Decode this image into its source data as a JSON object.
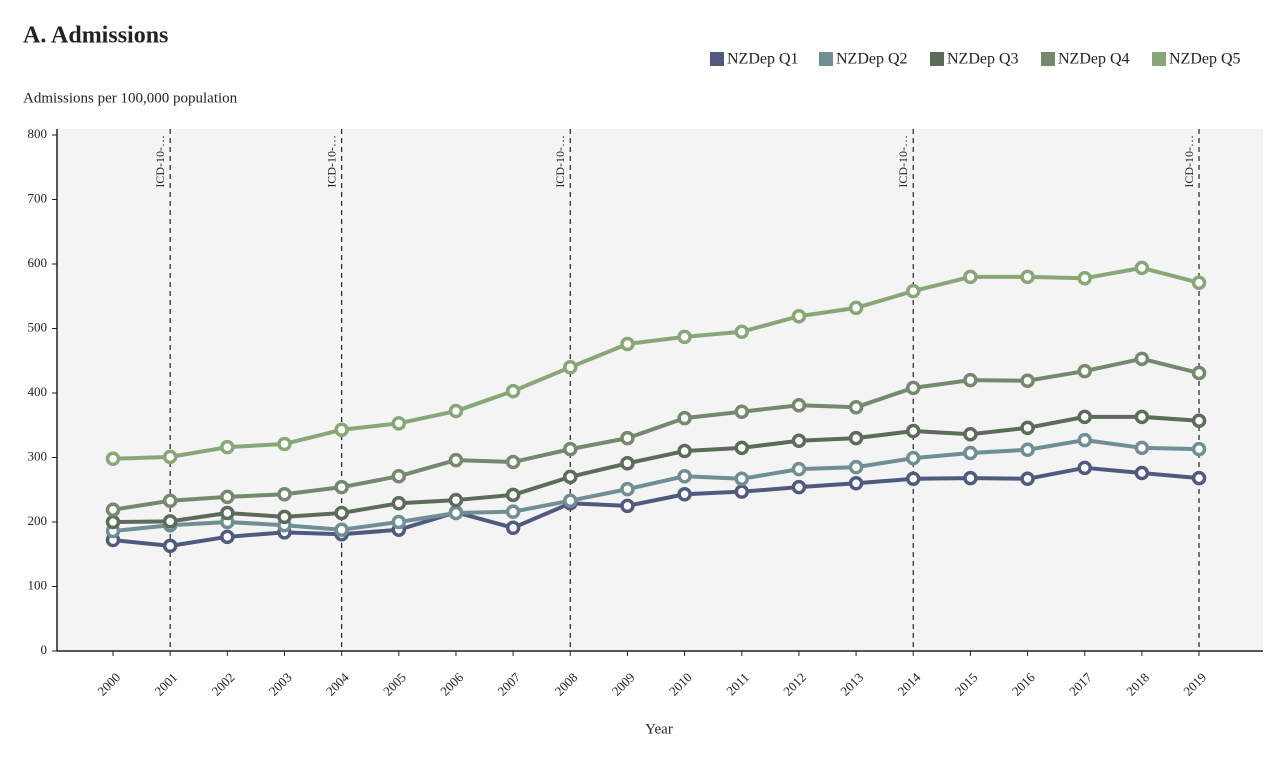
{
  "chart_data": {
    "type": "line",
    "title": "A. Admissions",
    "subtitle": "Admissions per 100,000 population",
    "x_label": "Year",
    "categories": [
      "2000",
      "2001",
      "2002",
      "2003",
      "2004",
      "2005",
      "2006",
      "2007",
      "2008",
      "2009",
      "2010",
      "2011",
      "2012",
      "2013",
      "2014",
      "2015",
      "2016",
      "2017",
      "2018",
      "2019"
    ],
    "ylim": [
      0,
      800
    ],
    "yticks": [
      0,
      100,
      200,
      300,
      400,
      500,
      600,
      700,
      800
    ],
    "grid": false,
    "legend": "top-right",
    "series": [
      {
        "name": "NZDep Q1",
        "color": "#4f5a7e",
        "values": [
          172,
          163,
          177,
          184,
          181,
          188,
          215,
          191,
          229,
          225,
          243,
          247,
          254,
          260,
          267,
          268,
          267,
          284,
          276,
          268
        ]
      },
      {
        "name": "NZDep Q2",
        "color": "#6f8f94",
        "values": [
          186,
          195,
          200,
          195,
          188,
          200,
          214,
          216,
          233,
          251,
          271,
          267,
          282,
          285,
          299,
          307,
          312,
          327,
          315,
          313
        ]
      },
      {
        "name": "NZDep Q3",
        "color": "#5c6b5a",
        "values": [
          200,
          201,
          214,
          208,
          214,
          229,
          234,
          242,
          270,
          291,
          310,
          315,
          326,
          330,
          341,
          336,
          346,
          363,
          363,
          357
        ]
      },
      {
        "name": "NZDep Q4",
        "color": "#738a6c",
        "values": [
          219,
          233,
          239,
          243,
          254,
          271,
          296,
          293,
          313,
          330,
          361,
          371,
          381,
          378,
          408,
          420,
          419,
          434,
          453,
          431
        ]
      },
      {
        "name": "NZDep Q5",
        "color": "#87a776",
        "values": [
          298,
          301,
          316,
          321,
          343,
          353,
          372,
          403,
          440,
          476,
          487,
          495,
          519,
          532,
          558,
          580,
          580,
          578,
          594,
          571
        ]
      }
    ],
    "annotations": [
      {
        "x": "2001",
        "label": "ICD-10-…"
      },
      {
        "x": "2004",
        "label": "ICD-10-…"
      },
      {
        "x": "2008",
        "label": "ICD-10-…"
      },
      {
        "x": "2014",
        "label": "ICD-10-…"
      },
      {
        "x": "2019",
        "label": "ICD-10-…"
      }
    ]
  }
}
